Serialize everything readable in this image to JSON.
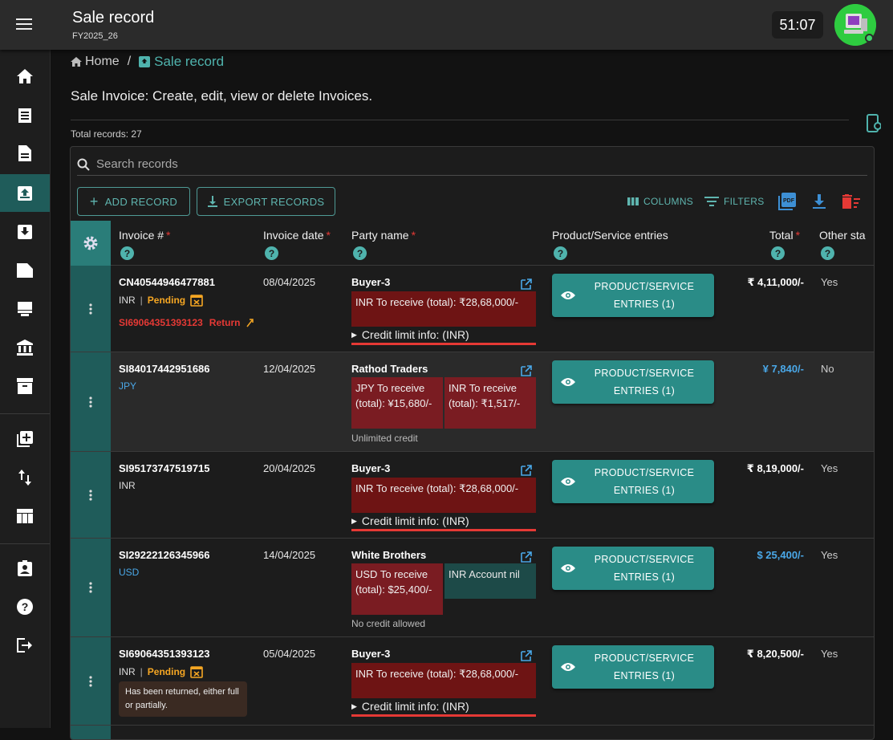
{
  "header": {
    "title": "Sale record",
    "subtitle": "FY2025_26",
    "timer": "51:07"
  },
  "breadcrumb": {
    "home": "Home",
    "separator": "/",
    "current": "Sale record"
  },
  "page": {
    "description": "Sale Invoice: Create, edit, view or delete Invoices.",
    "total_records": "Total records: 27"
  },
  "search": {
    "placeholder": "Search records"
  },
  "toolbar": {
    "add": "ADD RECORD",
    "export": "EXPORT RECORDS",
    "columns": "COLUMNS",
    "filters": "FILTERS"
  },
  "columns": {
    "invoice": "Invoice #",
    "date": "Invoice date",
    "party": "Party name",
    "entries": "Product/Service entries",
    "total": "Total",
    "other": "Other sta",
    "required_mark": "*"
  },
  "entries_button": {
    "line1": "PRODUCT/SERVICE",
    "line2": "ENTRIES (1)"
  },
  "rows": [
    {
      "invoice": "CN40544946477881",
      "currency": "INR",
      "status": "Pending",
      "ref": "SI69064351393123",
      "ref_type": "Return",
      "date": "08/04/2025",
      "party": "Buyer-3",
      "owe": "INR To receive (total): ₹28,68,000/-",
      "credit": "Credit limit info: (INR)",
      "total": "₹ 4,11,000/-",
      "other": "Yes"
    },
    {
      "invoice": "SI84017442951686",
      "currency": "JPY",
      "date": "12/04/2025",
      "party": "Rathod Traders",
      "owe_a": "JPY To receive (total): ¥15,680/-",
      "owe_b": "INR To receive (total): ₹1,517/-",
      "note": "Unlimited credit",
      "total": "¥ 7,840/-",
      "other": "No"
    },
    {
      "invoice": "SI95173747519715",
      "currency": "INR",
      "date": "20/04/2025",
      "party": "Buyer-3",
      "owe": "INR To receive (total): ₹28,68,000/-",
      "credit": "Credit limit info: (INR)",
      "total": "₹ 8,19,000/-",
      "other": "Yes"
    },
    {
      "invoice": "SI29222126345966",
      "currency": "USD",
      "date": "14/04/2025",
      "party": "White Brothers",
      "owe_a": "USD To receive (total): $25,400/-",
      "owe_b": "INR Account nil",
      "note": "No credit allowed",
      "total": "$ 25,400/-",
      "other": "Yes"
    },
    {
      "invoice": "SI69064351393123",
      "currency": "INR",
      "status": "Pending",
      "tip": "Has been returned, either full or partially.",
      "date": "05/04/2025",
      "party": "Buyer-3",
      "owe": "INR To receive (total): ₹28,68,000/-",
      "credit": "Credit limit info: (INR)",
      "total": "₹ 8,20,500/-",
      "other": "Yes"
    }
  ],
  "colors": {
    "accent": "#2a8c87",
    "sidebar_active": "#1f5c5a",
    "due": "#6e1414",
    "required": "#e53935",
    "pending": "#f5a623",
    "link": "#4aa8e8"
  }
}
